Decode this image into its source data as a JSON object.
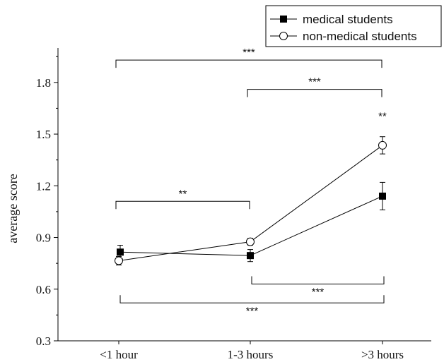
{
  "chart_data": {
    "type": "line",
    "categories": [
      "<1 hour",
      "1-3 hours",
      ">3 hours"
    ],
    "ylabel": "average score",
    "ylim": [
      0.3,
      2.0
    ],
    "yticks": [
      "0.3",
      "0.6",
      "0.9",
      "1.2",
      "1.5",
      "1.8"
    ],
    "grid": false,
    "legend_position": "top-right, outside plot",
    "series": [
      {
        "name": "medical students",
        "marker": "filled-square",
        "color": "#000000",
        "values": [
          0.815,
          0.795,
          1.14
        ],
        "errors": [
          0.04,
          0.035,
          0.08
        ]
      },
      {
        "name": "non-medical students",
        "marker": "open-circle",
        "color": "#000000",
        "values": [
          0.765,
          0.875,
          1.435
        ],
        "errors": [
          0.025,
          0.02,
          0.05
        ]
      }
    ],
    "significance": {
      "upper": [
        {
          "from": 0,
          "to": 2,
          "y": 1.93,
          "label": "***"
        },
        {
          "from": 1,
          "to": 2,
          "y": 1.76,
          "label": "***"
        },
        {
          "from": 0,
          "to": 1,
          "y": 1.11,
          "label": "**"
        }
      ],
      "lower": [
        {
          "from": 1,
          "to": 2,
          "y": 0.63,
          "label": "***"
        },
        {
          "from": 0,
          "to": 2,
          "y": 0.52,
          "label": "***"
        }
      ],
      "point": [
        {
          "at": 2,
          "y": 1.6,
          "label": "**"
        }
      ]
    }
  }
}
